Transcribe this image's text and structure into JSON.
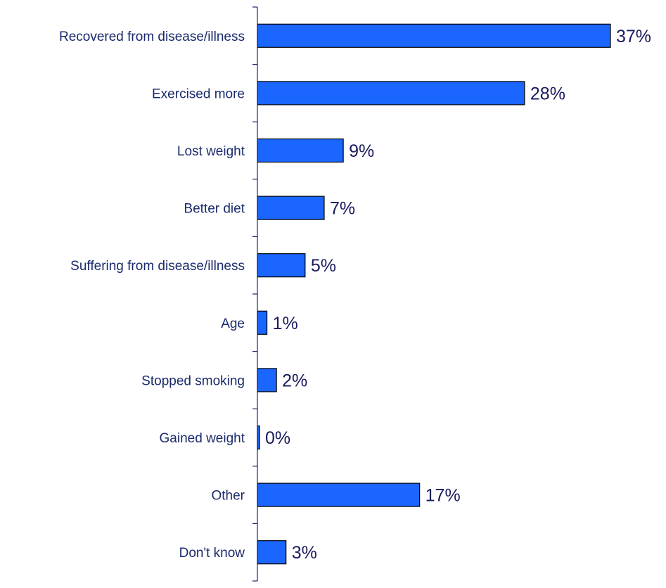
{
  "chart_data": {
    "type": "bar",
    "orientation": "horizontal",
    "categories": [
      "Recovered from disease/illness",
      "Exercised more",
      "Lost weight",
      "Better diet",
      "Suffering from disease/illness",
      "Age",
      "Stopped smoking",
      "Gained weight",
      "Other",
      "Don't know"
    ],
    "values": [
      37,
      28,
      9,
      7,
      5,
      1,
      2,
      0,
      17,
      3
    ],
    "value_labels": [
      "37%",
      "28%",
      "9%",
      "7%",
      "5%",
      "1%",
      "2%",
      "0%",
      "17%",
      "3%"
    ],
    "unit": "%",
    "grid": false,
    "legend": "none",
    "colors": {
      "bar": "#1a66ff",
      "bar_border": "#000000",
      "axis": "#1a2a6c",
      "text": "#1a2a6c"
    }
  }
}
